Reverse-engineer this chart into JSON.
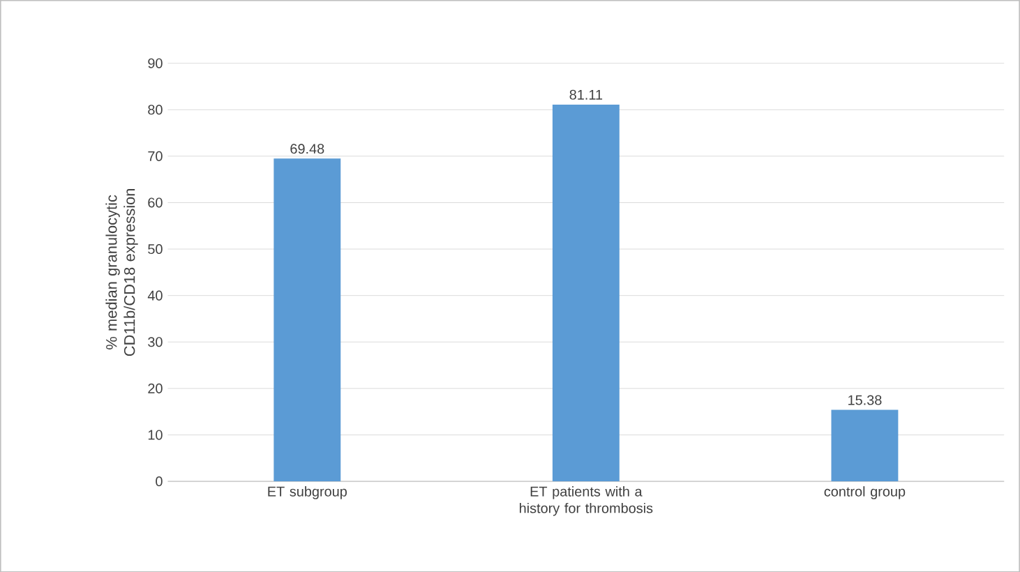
{
  "chart_data": {
    "type": "bar",
    "ylabel": "% median granulocytic CD11b/CD18 expression",
    "categories": [
      "ET subgroup",
      "ET patients with a history for thrombosis",
      "control group"
    ],
    "values": [
      69.48,
      81.11,
      15.38
    ],
    "color": "#5b9bd5",
    "ylim": [
      0,
      90
    ],
    "yticks": [
      0,
      10,
      20,
      30,
      40,
      50,
      60,
      70,
      80,
      90
    ],
    "grid": "y",
    "data_labels": true
  }
}
